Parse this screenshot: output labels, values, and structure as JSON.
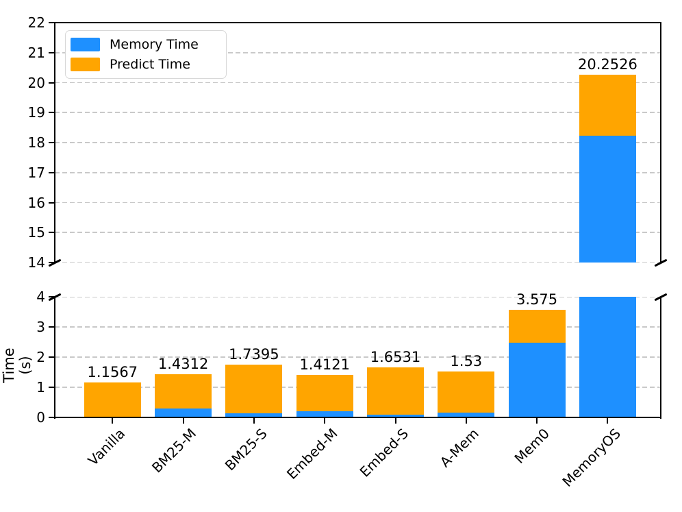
{
  "chart_data": {
    "type": "bar",
    "stacked": true,
    "title": "",
    "xlabel": "",
    "ylabel": "Time (s)",
    "grid": "dashed horizontal",
    "legend_position": "upper left",
    "categories": [
      "Vanilla",
      "BM25-M",
      "BM25-S",
      "Embed-M",
      "Embed-S",
      "A-Mem",
      "Mem0",
      "MemoryOS"
    ],
    "series": [
      {
        "name": "Memory Time",
        "color": "#1E90FF",
        "values": [
          0,
          0.29,
          0.145,
          0.2,
          0.09,
          0.15,
          2.47,
          18.22
        ]
      },
      {
        "name": "Predict Time",
        "color": "#FFA500",
        "values": [
          1.1567,
          1.1412,
          1.5945,
          1.2121,
          1.5631,
          1.38,
          1.105,
          2.0326
        ]
      }
    ],
    "totals": [
      1.1567,
      1.4312,
      1.7395,
      1.4121,
      1.6531,
      1.53,
      3.575,
      20.2526
    ],
    "bar_labels": [
      "1.1567",
      "1.4312",
      "1.7395",
      "1.4121",
      "1.6531",
      "1.53",
      "3.575",
      "20.2526"
    ],
    "axes": {
      "top_panel": {
        "ylim": [
          14,
          22
        ],
        "ticks": [
          22,
          21,
          20,
          19,
          18,
          17,
          16,
          15,
          14
        ]
      },
      "bottom_panel": {
        "ylim": [
          0,
          4
        ],
        "ticks": [
          4,
          3,
          2,
          1,
          0
        ]
      }
    }
  }
}
